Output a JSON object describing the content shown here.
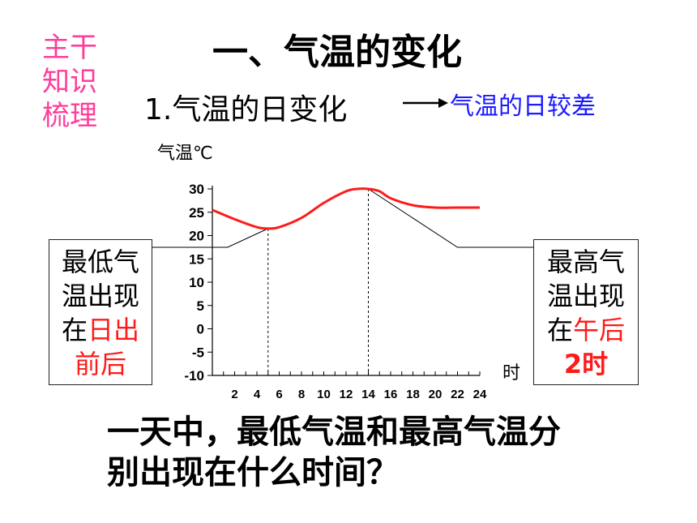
{
  "side_label": [
    "主干",
    "知识",
    "梳理"
  ],
  "main_title": "一、气温的变化",
  "sub_title": "1.气温的日变化",
  "sub_note": "气温的日较差",
  "left_box": {
    "lines": [
      "最低气",
      "温出现",
      "在"
    ],
    "highlight": "日出",
    "tail": "前后"
  },
  "right_box": {
    "lines": [
      "最高气",
      "温出现",
      "在"
    ],
    "highlight": "午后",
    "tail": "2时"
  },
  "question": [
    "一天中，最低气温和最高气温分",
    "别出现在什么时间？"
  ],
  "colors": {
    "accent_pink": "#ff3d9a",
    "note_blue": "#1a1aff",
    "curve_red": "#ff1a1a"
  },
  "chart_data": {
    "type": "line",
    "title": "",
    "ylabel": "气温℃",
    "xlabel": "时",
    "ylim": [
      -10,
      30
    ],
    "xlim": [
      0,
      24
    ],
    "y_ticks": [
      "30",
      "25",
      "20",
      "15",
      "10",
      "5",
      "0",
      "-5",
      "-10"
    ],
    "x_ticks": [
      "2",
      "4",
      "6",
      "8",
      "10",
      "12",
      "14",
      "16",
      "18",
      "20",
      "22",
      "24"
    ],
    "series": [
      {
        "x": [
          0,
          2,
          4,
          5,
          6,
          8,
          10,
          12,
          13,
          14,
          15,
          16,
          18,
          20,
          22,
          24
        ],
        "y": [
          25.5,
          23.5,
          21.8,
          21.5,
          21.8,
          23.8,
          27,
          29.5,
          30,
          30,
          29.5,
          28,
          26.5,
          26,
          26,
          26
        ]
      }
    ],
    "markers": {
      "min_hour": 5,
      "max_hour": 14
    },
    "grid": false
  }
}
